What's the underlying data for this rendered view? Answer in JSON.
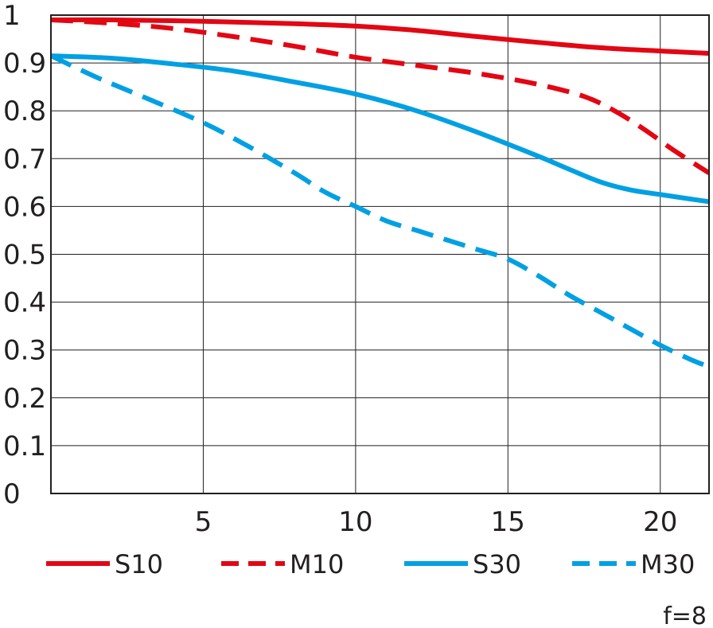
{
  "chart_data": {
    "type": "line",
    "title": "",
    "xlabel": "",
    "ylabel": "",
    "xlim": [
      0,
      21.6
    ],
    "ylim": [
      0,
      1
    ],
    "x_ticks": [
      5,
      10,
      15,
      20
    ],
    "x_tick_labels": [
      "5",
      "10",
      "15",
      "20"
    ],
    "y_ticks": [
      0,
      0.1,
      0.2,
      0.3,
      0.4,
      0.5,
      0.6,
      0.7,
      0.8,
      0.9,
      1
    ],
    "y_tick_labels": [
      "0",
      "0.1",
      "0.2",
      "0.3",
      "0.4",
      "0.5",
      "0.6",
      "0.7",
      "0.8",
      "0.9",
      "1"
    ],
    "grid": true,
    "legend_position": "bottom",
    "annotation": "f=8",
    "series": [
      {
        "name": "S10",
        "color": "#e30613",
        "dash": "solid",
        "points": [
          [
            0,
            0.99
          ],
          [
            2,
            0.99
          ],
          [
            5,
            0.987
          ],
          [
            8,
            0.982
          ],
          [
            10,
            0.977
          ],
          [
            12,
            0.968
          ],
          [
            14,
            0.955
          ],
          [
            16,
            0.943
          ],
          [
            18,
            0.932
          ],
          [
            20,
            0.925
          ],
          [
            21.6,
            0.92
          ]
        ]
      },
      {
        "name": "M10",
        "color": "#e30613",
        "dash": "dashed",
        "points": [
          [
            0,
            0.99
          ],
          [
            2,
            0.983
          ],
          [
            4,
            0.972
          ],
          [
            6,
            0.955
          ],
          [
            8,
            0.935
          ],
          [
            10,
            0.912
          ],
          [
            12,
            0.895
          ],
          [
            14,
            0.878
          ],
          [
            16,
            0.855
          ],
          [
            17.5,
            0.83
          ],
          [
            18.5,
            0.8
          ],
          [
            19.5,
            0.76
          ],
          [
            20.5,
            0.715
          ],
          [
            21.6,
            0.67
          ]
        ]
      },
      {
        "name": "S30",
        "color": "#00a0e3",
        "dash": "solid",
        "points": [
          [
            0,
            0.915
          ],
          [
            2,
            0.91
          ],
          [
            4,
            0.898
          ],
          [
            6,
            0.883
          ],
          [
            8,
            0.86
          ],
          [
            10,
            0.835
          ],
          [
            12,
            0.8
          ],
          [
            14,
            0.755
          ],
          [
            16,
            0.705
          ],
          [
            17,
            0.678
          ],
          [
            18,
            0.652
          ],
          [
            19,
            0.635
          ],
          [
            20,
            0.625
          ],
          [
            21.6,
            0.61
          ]
        ]
      },
      {
        "name": "M30",
        "color": "#00a0e3",
        "dash": "dashed",
        "points": [
          [
            0,
            0.915
          ],
          [
            1.5,
            0.87
          ],
          [
            3,
            0.83
          ],
          [
            5,
            0.775
          ],
          [
            6.5,
            0.725
          ],
          [
            8,
            0.67
          ],
          [
            9,
            0.63
          ],
          [
            10,
            0.6
          ],
          [
            11,
            0.57
          ],
          [
            12,
            0.55
          ],
          [
            13,
            0.53
          ],
          [
            14,
            0.51
          ],
          [
            15,
            0.49
          ],
          [
            16,
            0.455
          ],
          [
            17,
            0.415
          ],
          [
            18,
            0.38
          ],
          [
            19,
            0.345
          ],
          [
            20,
            0.31
          ],
          [
            21,
            0.28
          ],
          [
            21.6,
            0.265
          ]
        ]
      }
    ]
  }
}
